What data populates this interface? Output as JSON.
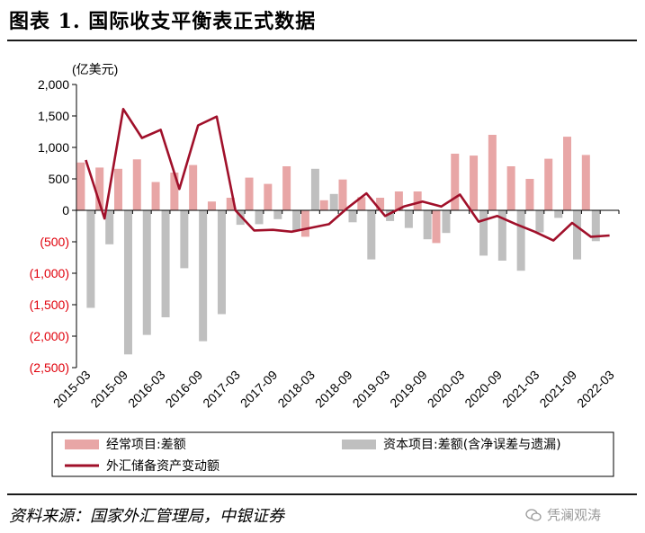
{
  "header": {
    "title": "图表 1. 国际收支平衡表正式数据"
  },
  "footer": {
    "source": "资料来源：国家外汇管理局，中银证券",
    "watermark": "凭澜观涛"
  },
  "colors": {
    "current": "#e8a6a6",
    "capital": "#bfbfbf",
    "reserves": "#a0102a",
    "negative_label": "#e0000b"
  },
  "chart_data": {
    "type": "bar",
    "unit_label": "(亿美元)",
    "ylim": [
      -2500,
      2000
    ],
    "y_ticks": [
      {
        "value": 2000,
        "label": "2,000"
      },
      {
        "value": 1500,
        "label": "1,500"
      },
      {
        "value": 1000,
        "label": "1,000"
      },
      {
        "value": 500,
        "label": "500"
      },
      {
        "value": 0,
        "label": "0"
      },
      {
        "value": -500,
        "label": "(500)"
      },
      {
        "value": -1000,
        "label": "(1,000)"
      },
      {
        "value": -1500,
        "label": "(1,500)"
      },
      {
        "value": -2000,
        "label": "(2,000)"
      },
      {
        "value": -2500,
        "label": "(2,500)"
      }
    ],
    "categories": [
      "2015-03",
      "2015-06",
      "2015-09",
      "2015-12",
      "2016-03",
      "2016-06",
      "2016-09",
      "2016-12",
      "2017-03",
      "2017-06",
      "2017-09",
      "2017-12",
      "2018-03",
      "2018-06",
      "2018-09",
      "2018-12",
      "2019-03",
      "2019-06",
      "2019-09",
      "2019-12",
      "2020-03",
      "2020-06",
      "2020-09",
      "2020-12",
      "2021-03",
      "2021-06",
      "2021-09",
      "2021-12",
      "2022-03"
    ],
    "x_tick_labels": [
      "2015-03",
      "2015-09",
      "2016-03",
      "2016-09",
      "2017-03",
      "2017-09",
      "2018-03",
      "2018-09",
      "2019-03",
      "2019-09",
      "2020-03",
      "2020-09",
      "2021-03",
      "2021-09",
      "2022-03"
    ],
    "series": [
      {
        "name": "经常项目:差额",
        "kind": "bar",
        "values": [
          760,
          680,
          660,
          810,
          450,
          600,
          720,
          140,
          200,
          520,
          420,
          700,
          -420,
          160,
          490,
          210,
          200,
          300,
          300,
          -520,
          900,
          870,
          1200,
          700,
          500,
          820,
          1170,
          880,
          0
        ]
      },
      {
        "name": "资本项目:差额(含净误差与遗漏)",
        "kind": "bar",
        "values": [
          -1550,
          -540,
          -2290,
          -1980,
          -1700,
          -920,
          -2080,
          -1650,
          -230,
          -220,
          -140,
          -330,
          660,
          260,
          -190,
          -780,
          -170,
          -280,
          -460,
          -360,
          0,
          -720,
          -800,
          -960,
          -350,
          -120,
          -780,
          -490,
          0
        ]
      },
      {
        "name": "外汇储备资产变动额",
        "kind": "line",
        "values": [
          800,
          -130,
          1610,
          1150,
          1280,
          340,
          1350,
          1490,
          0,
          -320,
          -310,
          -340,
          -280,
          -220,
          40,
          270,
          -90,
          60,
          140,
          60,
          250,
          -180,
          -90,
          -220,
          -340,
          -480,
          -200,
          -420,
          -400
        ]
      }
    ],
    "legend": {
      "placement": "bottom"
    }
  }
}
